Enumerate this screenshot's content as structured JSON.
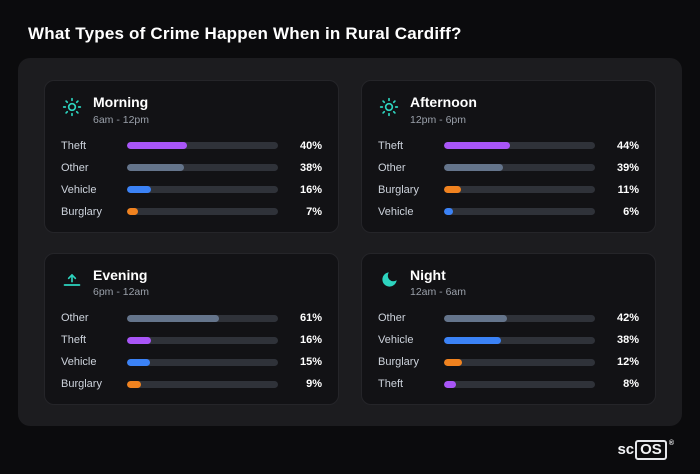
{
  "page_title": "What Types of Crime Happen When in Rural Cardiff?",
  "logo": {
    "prefix": "sc",
    "suffix": "OS",
    "registered": "®"
  },
  "colors": {
    "accent_teal": "#2dd4bf",
    "theft_purple": "#a855f7",
    "other_slate": "#64748b",
    "vehicle_blue": "#3b82f6",
    "burglary_orange": "#f0821f",
    "page_bg": "#0b0b0d",
    "panel_bg": "#1c1c1f",
    "card_bg": "#121215",
    "track_bg": "#2f3239"
  },
  "chart_data": {
    "type": "bar",
    "orientation": "horizontal",
    "title": "What Types of Crime Happen When in Rural Cardiff?",
    "value_format": "percent",
    "xlim": [
      0,
      100
    ],
    "panels": [
      {
        "label": "Morning",
        "time_range": "6am - 12pm",
        "icon": "sun-icon",
        "bars": [
          {
            "category": "Theft",
            "value": 40,
            "pct": "40%",
            "color": "#a855f7"
          },
          {
            "category": "Other",
            "value": 38,
            "pct": "38%",
            "color": "#64748b"
          },
          {
            "category": "Vehicle",
            "value": 16,
            "pct": "16%",
            "color": "#3b82f6"
          },
          {
            "category": "Burglary",
            "value": 7,
            "pct": "7%",
            "color": "#f0821f"
          }
        ]
      },
      {
        "label": "Afternoon",
        "time_range": "12pm - 6pm",
        "icon": "sun-icon",
        "bars": [
          {
            "category": "Theft",
            "value": 44,
            "pct": "44%",
            "color": "#a855f7"
          },
          {
            "category": "Other",
            "value": 39,
            "pct": "39%",
            "color": "#64748b"
          },
          {
            "category": "Burglary",
            "value": 11,
            "pct": "11%",
            "color": "#f0821f"
          },
          {
            "category": "Vehicle",
            "value": 6,
            "pct": "6%",
            "color": "#3b82f6"
          }
        ]
      },
      {
        "label": "Evening",
        "time_range": "6pm - 12am",
        "icon": "sunset-icon",
        "bars": [
          {
            "category": "Other",
            "value": 61,
            "pct": "61%",
            "color": "#64748b"
          },
          {
            "category": "Theft",
            "value": 16,
            "pct": "16%",
            "color": "#a855f7"
          },
          {
            "category": "Vehicle",
            "value": 15,
            "pct": "15%",
            "color": "#3b82f6"
          },
          {
            "category": "Burglary",
            "value": 9,
            "pct": "9%",
            "color": "#f0821f"
          }
        ]
      },
      {
        "label": "Night",
        "time_range": "12am - 6am",
        "icon": "moon-icon",
        "bars": [
          {
            "category": "Other",
            "value": 42,
            "pct": "42%",
            "color": "#64748b"
          },
          {
            "category": "Vehicle",
            "value": 38,
            "pct": "38%",
            "color": "#3b82f6"
          },
          {
            "category": "Burglary",
            "value": 12,
            "pct": "12%",
            "color": "#f0821f"
          },
          {
            "category": "Theft",
            "value": 8,
            "pct": "8%",
            "color": "#a855f7"
          }
        ]
      }
    ]
  }
}
